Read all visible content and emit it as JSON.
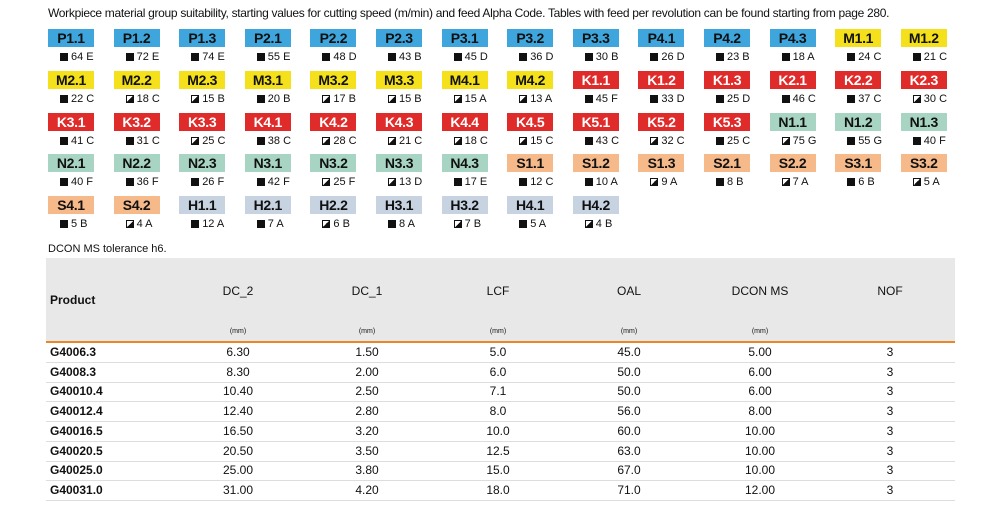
{
  "caption": "Workpiece material group suitability, starting values for cutting speed (m/min) and feed Alpha Code. Tables with feed per revolution can be found starting from page 280.",
  "materials": [
    [
      {
        "code": "P1.1",
        "value": "64 E",
        "fill": "full"
      },
      {
        "code": "P1.2",
        "value": "72 E",
        "fill": "full"
      },
      {
        "code": "P1.3",
        "value": "74 E",
        "fill": "full"
      },
      {
        "code": "P2.1",
        "value": "55 E",
        "fill": "full"
      },
      {
        "code": "P2.2",
        "value": "48 D",
        "fill": "full"
      },
      {
        "code": "P2.3",
        "value": "43 B",
        "fill": "full"
      },
      {
        "code": "P3.1",
        "value": "45 D",
        "fill": "full"
      },
      {
        "code": "P3.2",
        "value": "36 D",
        "fill": "full"
      },
      {
        "code": "P3.3",
        "value": "30 B",
        "fill": "full"
      },
      {
        "code": "P4.1",
        "value": "26 D",
        "fill": "full"
      },
      {
        "code": "P4.2",
        "value": "23 B",
        "fill": "full"
      },
      {
        "code": "P4.3",
        "value": "18 A",
        "fill": "full"
      },
      {
        "code": "M1.1",
        "value": "24 C",
        "fill": "full"
      },
      {
        "code": "M1.2",
        "value": "21 C",
        "fill": "full"
      }
    ],
    [
      {
        "code": "M2.1",
        "value": "22 C",
        "fill": "full"
      },
      {
        "code": "M2.2",
        "value": "18 C",
        "fill": "half"
      },
      {
        "code": "M2.3",
        "value": "15 B",
        "fill": "half"
      },
      {
        "code": "M3.1",
        "value": "20 B",
        "fill": "full"
      },
      {
        "code": "M3.2",
        "value": "17 B",
        "fill": "half"
      },
      {
        "code": "M3.3",
        "value": "15 B",
        "fill": "half"
      },
      {
        "code": "M4.1",
        "value": "15 A",
        "fill": "half"
      },
      {
        "code": "M4.2",
        "value": "13 A",
        "fill": "half"
      },
      {
        "code": "K1.1",
        "value": "45 F",
        "fill": "full"
      },
      {
        "code": "K1.2",
        "value": "33 D",
        "fill": "full"
      },
      {
        "code": "K1.3",
        "value": "25 D",
        "fill": "full"
      },
      {
        "code": "K2.1",
        "value": "46 C",
        "fill": "full"
      },
      {
        "code": "K2.2",
        "value": "37 C",
        "fill": "full"
      },
      {
        "code": "K2.3",
        "value": "30 C",
        "fill": "half"
      }
    ],
    [
      {
        "code": "K3.1",
        "value": "41 C",
        "fill": "full"
      },
      {
        "code": "K3.2",
        "value": "31 C",
        "fill": "full"
      },
      {
        "code": "K3.3",
        "value": "25 C",
        "fill": "half"
      },
      {
        "code": "K4.1",
        "value": "38 C",
        "fill": "full"
      },
      {
        "code": "K4.2",
        "value": "28 C",
        "fill": "half"
      },
      {
        "code": "K4.3",
        "value": "21 C",
        "fill": "half"
      },
      {
        "code": "K4.4",
        "value": "18 C",
        "fill": "half"
      },
      {
        "code": "K4.5",
        "value": "15 C",
        "fill": "half"
      },
      {
        "code": "K5.1",
        "value": "43 C",
        "fill": "full"
      },
      {
        "code": "K5.2",
        "value": "32 C",
        "fill": "half"
      },
      {
        "code": "K5.3",
        "value": "25 C",
        "fill": "full"
      },
      {
        "code": "N1.1",
        "value": "75 G",
        "fill": "half"
      },
      {
        "code": "N1.2",
        "value": "55 G",
        "fill": "full"
      },
      {
        "code": "N1.3",
        "value": "40 F",
        "fill": "full"
      }
    ],
    [
      {
        "code": "N2.1",
        "value": "40 F",
        "fill": "full"
      },
      {
        "code": "N2.2",
        "value": "36 F",
        "fill": "full"
      },
      {
        "code": "N2.3",
        "value": "26 F",
        "fill": "full"
      },
      {
        "code": "N3.1",
        "value": "42 F",
        "fill": "full"
      },
      {
        "code": "N3.2",
        "value": "25 F",
        "fill": "half"
      },
      {
        "code": "N3.3",
        "value": "13 D",
        "fill": "half"
      },
      {
        "code": "N4.3",
        "value": "17 E",
        "fill": "full"
      },
      {
        "code": "S1.1",
        "value": "12 C",
        "fill": "full"
      },
      {
        "code": "S1.2",
        "value": "10 A",
        "fill": "full"
      },
      {
        "code": "S1.3",
        "value": "9 A",
        "fill": "half"
      },
      {
        "code": "S2.1",
        "value": "8 B",
        "fill": "full"
      },
      {
        "code": "S2.2",
        "value": "7 A",
        "fill": "half"
      },
      {
        "code": "S3.1",
        "value": "6 B",
        "fill": "full"
      },
      {
        "code": "S3.2",
        "value": "5 A",
        "fill": "half"
      }
    ],
    [
      {
        "code": "S4.1",
        "value": "5 B",
        "fill": "full"
      },
      {
        "code": "S4.2",
        "value": "4 A",
        "fill": "half"
      },
      {
        "code": "H1.1",
        "value": "12 A",
        "fill": "full"
      },
      {
        "code": "H2.1",
        "value": "7 A",
        "fill": "full"
      },
      {
        "code": "H2.2",
        "value": "6 B",
        "fill": "half"
      },
      {
        "code": "H3.1",
        "value": "8 A",
        "fill": "full"
      },
      {
        "code": "H3.2",
        "value": "7 B",
        "fill": "half"
      },
      {
        "code": "H4.1",
        "value": "5 A",
        "fill": "full"
      },
      {
        "code": "H4.2",
        "value": "4 B",
        "fill": "half"
      }
    ]
  ],
  "note": "DCON MS tolerance h6.",
  "table": {
    "headers": [
      "Product",
      "DC_2",
      "DC_1",
      "LCF",
      "OAL",
      "DCON MS",
      "NOF"
    ],
    "units": [
      null,
      "(mm)",
      "(mm)",
      "(mm)",
      "(mm)",
      "(mm)",
      null
    ],
    "rows": [
      [
        "G4006.3",
        "6.30",
        "1.50",
        "5.0",
        "45.0",
        "5.00",
        "3"
      ],
      [
        "G4008.3",
        "8.30",
        "2.00",
        "6.0",
        "50.0",
        "6.00",
        "3"
      ],
      [
        "G40010.4",
        "10.40",
        "2.50",
        "7.1",
        "50.0",
        "6.00",
        "3"
      ],
      [
        "G40012.4",
        "12.40",
        "2.80",
        "8.0",
        "56.0",
        "8.00",
        "3"
      ],
      [
        "G40016.5",
        "16.50",
        "3.20",
        "10.0",
        "60.0",
        "10.00",
        "3"
      ],
      [
        "G40020.5",
        "20.50",
        "3.50",
        "12.5",
        "63.0",
        "10.00",
        "3"
      ],
      [
        "G40025.0",
        "25.00",
        "3.80",
        "15.0",
        "67.0",
        "10.00",
        "3"
      ],
      [
        "G40031.0",
        "31.00",
        "4.20",
        "18.0",
        "71.0",
        "12.00",
        "3"
      ]
    ]
  }
}
